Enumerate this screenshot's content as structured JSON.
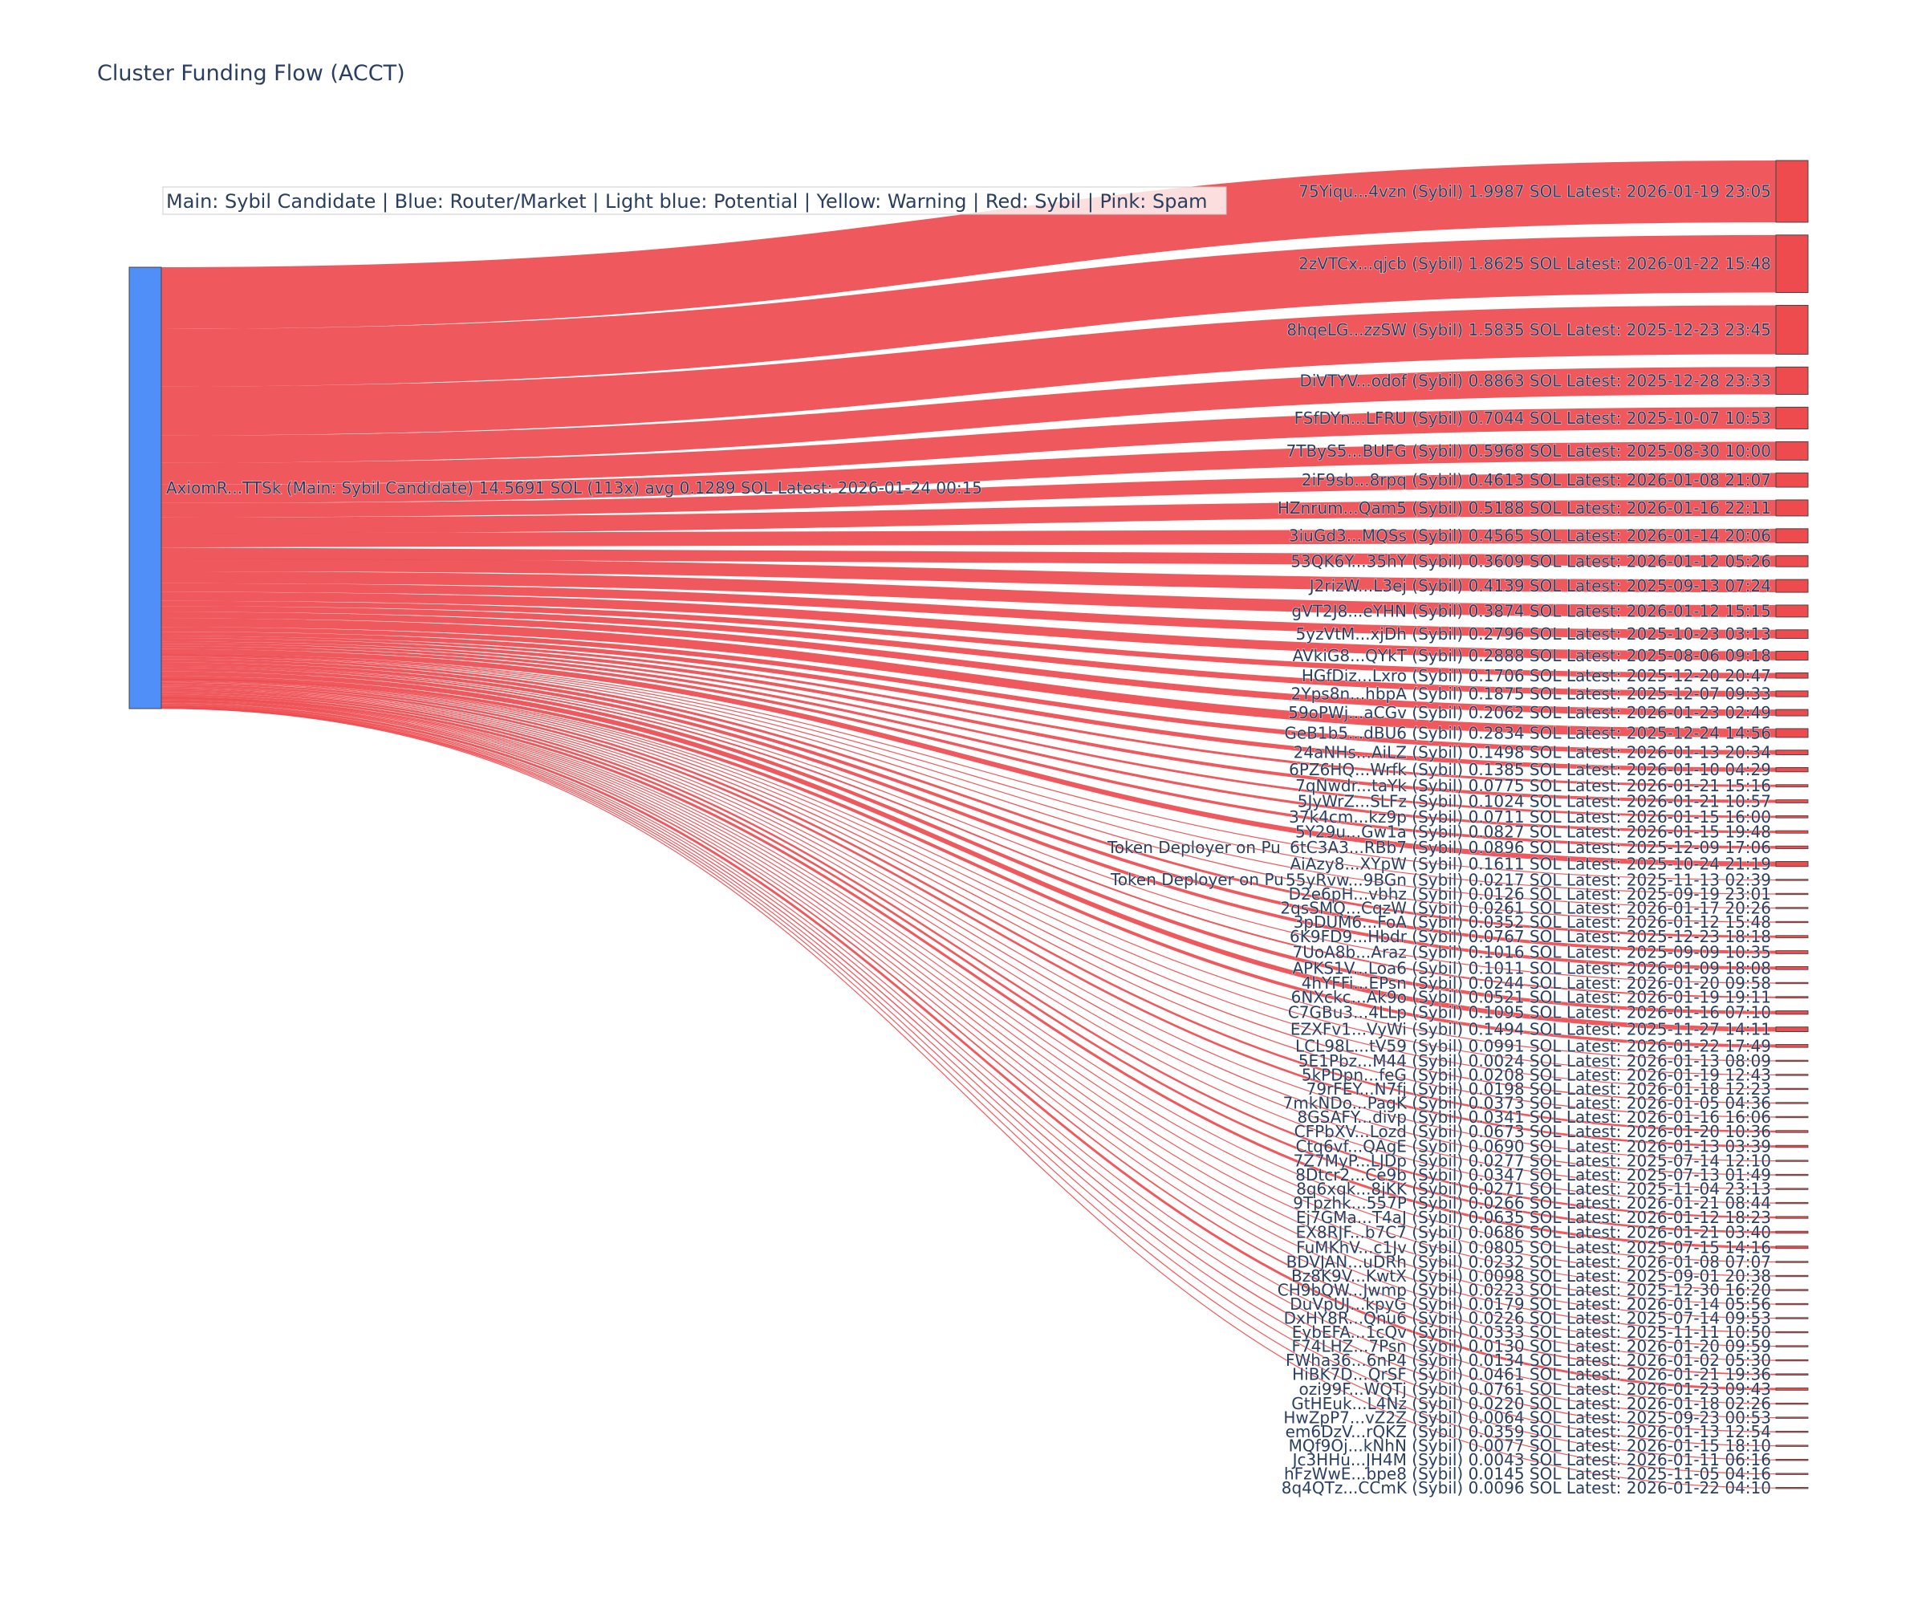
{
  "colors": {
    "source_node": "#4f8ff7",
    "sybil_node": "#ee4b4f",
    "link": "#ee4b4f",
    "text": "#2a3f5f"
  },
  "chart_data": {
    "type": "sankey",
    "title": "Cluster Funding Flow (ACCT)",
    "legend_note": "Main: Sybil Candidate  |  Blue: Router/Market | Light blue: Potential | Yellow: Warning | Red: Sybil | Pink: Spam",
    "source": {
      "label": "AxiomR...TTSk (Main: Sybil Candidate) 14.5691 SOL (113x) avg 0.1289 SOL Latest: 2026-01-24 00:15",
      "total_sol": 14.5691,
      "tx_count": 113,
      "color": "#4f8ff7"
    },
    "floating_labels": [
      "Token Deployer on Pu",
      "Token Deployer on Pu"
    ],
    "targets": [
      {
        "label": "75Yiqu...4vzn (Sybil) 1.9987 SOL Latest: 2026-01-19 23:05",
        "value": 1.9987
      },
      {
        "label": "2zVTCx...qjcb (Sybil) 1.8625 SOL Latest: 2026-01-22 15:48",
        "value": 1.8625
      },
      {
        "label": "8hqeLG...zzSW (Sybil) 1.5835 SOL Latest: 2025-12-23 23:45",
        "value": 1.5835
      },
      {
        "label": "DiVTYV...odof (Sybil) 0.8863 SOL Latest: 2025-12-28 23:33",
        "value": 0.8863
      },
      {
        "label": "FSfDYn...LFRU (Sybil) 0.7044 SOL Latest: 2025-10-07 10:53",
        "value": 0.7044
      },
      {
        "label": "7TByS5...BUFG (Sybil) 0.5968 SOL Latest: 2025-08-30 10:00",
        "value": 0.5968
      },
      {
        "label": "2iF9sb...8rpq (Sybil) 0.4613 SOL Latest: 2026-01-08 21:07",
        "value": 0.4613
      },
      {
        "label": "HZnrum...Qam5 (Sybil) 0.5188 SOL Latest: 2026-01-16 22:11",
        "value": 0.5188
      },
      {
        "label": "3iuGd3...MQSs (Sybil) 0.4565 SOL Latest: 2026-01-14 20:06",
        "value": 0.4565
      },
      {
        "label": "53QK6Y...35hY (Sybil) 0.3609 SOL Latest: 2026-01-12 05:26",
        "value": 0.3609
      },
      {
        "label": "J2rizW...L3ej (Sybil) 0.4139 SOL Latest: 2025-09-13 07:24",
        "value": 0.4139
      },
      {
        "label": "gVT2J8...eYHN (Sybil) 0.3874 SOL Latest: 2026-01-12 15:15",
        "value": 0.3874
      },
      {
        "label": "5yzVtM...xjDh (Sybil) 0.2796 SOL Latest: 2025-10-23 03:13",
        "value": 0.2796
      },
      {
        "label": "AVkiG8...QYkT (Sybil) 0.2888 SOL Latest: 2025-08-06 09:18",
        "value": 0.2888
      },
      {
        "label": "HGfDiz...Lxro (Sybil) 0.1706 SOL Latest: 2025-12-20 20:47",
        "value": 0.1706
      },
      {
        "label": "2Yps8n...hbpA (Sybil) 0.1875 SOL Latest: 2025-12-07 09:33",
        "value": 0.1875
      },
      {
        "label": "59oPWj...aCGv (Sybil) 0.2062 SOL Latest: 2026-01-23 02:49",
        "value": 0.2062
      },
      {
        "label": "GeB1b5...dBU6 (Sybil) 0.2834 SOL Latest: 2025-12-24 14:56",
        "value": 0.2834
      },
      {
        "label": "24aNHs...AiLZ (Sybil) 0.1498 SOL Latest: 2026-01-13 20:34",
        "value": 0.1498
      },
      {
        "label": "6PZ6HQ...Wrfk (Sybil) 0.1385 SOL Latest: 2026-01-10 04:29",
        "value": 0.1385
      },
      {
        "label": "7qNwdr...taYk (Sybil) 0.0775 SOL Latest: 2026-01-21 15:16",
        "value": 0.0775
      },
      {
        "label": "5JyWrZ...SLFz (Sybil) 0.1024 SOL Latest: 2026-01-21 10:57",
        "value": 0.1024
      },
      {
        "label": "37k4cm...kz9p (Sybil) 0.0711 SOL Latest: 2026-01-15 16:00",
        "value": 0.0711
      },
      {
        "label": "5Y29u...Gw1a (Sybil) 0.0827 SOL Latest: 2026-01-15 19:48",
        "value": 0.0827
      },
      {
        "label": "6tC3A3...RBb7 (Sybil) 0.0896 SOL Latest: 2025-12-09 17:06",
        "value": 0.0896
      },
      {
        "label": "AiAzy8...XYpW (Sybil) 0.1611 SOL Latest: 2025-10-24 21:19",
        "value": 0.1611
      },
      {
        "label": "55yRvw...9BGn (Sybil) 0.0217 SOL Latest: 2025-11-13 02:39",
        "value": 0.0217
      },
      {
        "label": "D2e6pH...vbhz (Sybil) 0.0126 SOL Latest: 2025-09-19 23:01",
        "value": 0.0126
      },
      {
        "label": "2qsSMQ...CqzW (Sybil) 0.0261 SOL Latest: 2026-01-17 20:26",
        "value": 0.0261
      },
      {
        "label": "3pDUM6...FoA (Sybil) 0.0352 SOL Latest: 2026-01-12 15:48",
        "value": 0.0352
      },
      {
        "label": "6K9FD9...Hbdr (Sybil) 0.0767 SOL Latest: 2025-12-23 18:18",
        "value": 0.0767
      },
      {
        "label": "7UoA8b...Araz (Sybil) 0.1016 SOL Latest: 2025-09-09 10:35",
        "value": 0.1016
      },
      {
        "label": "APKS1V...Loa6 (Sybil) 0.1011 SOL Latest: 2026-01-09 18:08",
        "value": 0.1011
      },
      {
        "label": "4hYFFi...EPsn (Sybil) 0.0244 SOL Latest: 2026-01-20 09:58",
        "value": 0.0244
      },
      {
        "label": "6NXckc...Ak9o (Sybil) 0.0521 SOL Latest: 2026-01-19 19:11",
        "value": 0.0521
      },
      {
        "label": "C7GBu3...4LLp (Sybil) 0.1095 SOL Latest: 2026-01-16 07:10",
        "value": 0.1095
      },
      {
        "label": "EZXFv1...VyWi (Sybil) 0.1494 SOL Latest: 2025-11-27 14:11",
        "value": 0.1494
      },
      {
        "label": "LCL98L...tV59 (Sybil) 0.0991 SOL Latest: 2026-01-22 17:49",
        "value": 0.0991
      },
      {
        "label": "5E1Pbz...M44 (Sybil) 0.0024 SOL Latest: 2026-01-13 08:09",
        "value": 0.0024
      },
      {
        "label": "5kPDpn...feG (Sybil) 0.0208 SOL Latest: 2026-01-19 12:43",
        "value": 0.0208
      },
      {
        "label": "79rFEY...N7fj (Sybil) 0.0198 SOL Latest: 2026-01-18 12:23",
        "value": 0.0198
      },
      {
        "label": "7mkNDo...PagK (Sybil) 0.0373 SOL Latest: 2026-01-05 04:36",
        "value": 0.0373
      },
      {
        "label": "8GSAFY...divp (Sybil) 0.0341 SOL Latest: 2026-01-16 16:06",
        "value": 0.0341
      },
      {
        "label": "CFPbXV...Lozd (Sybil) 0.0673 SOL Latest: 2026-01-20 10:36",
        "value": 0.0673
      },
      {
        "label": "Ctq6vf...QAgE (Sybil) 0.0690 SOL Latest: 2026-01-13 03:39",
        "value": 0.069
      },
      {
        "label": "7Z7MyP...LJDp (Sybil) 0.0277 SOL Latest: 2025-07-14 12:10",
        "value": 0.0277
      },
      {
        "label": "8Dtcr2...Ce9b (Sybil) 0.0347 SOL Latest: 2025-07-13 01:49",
        "value": 0.0347
      },
      {
        "label": "8q6xqk...8jKK (Sybil) 0.0271 SOL Latest: 2025-11-04 23:13",
        "value": 0.0271
      },
      {
        "label": "9Tpzhk...557P (Sybil) 0.0266 SOL Latest: 2026-01-21 08:44",
        "value": 0.0266
      },
      {
        "label": "Ej7GMa...T4aJ (Sybil) 0.0635 SOL Latest: 2026-01-12 18:23",
        "value": 0.0635
      },
      {
        "label": "EX8RJF...b7C7 (Sybil) 0.0686 SOL Latest: 2026-01-21 03:40",
        "value": 0.0686
      },
      {
        "label": "FuMKhV...c1Jv (Sybil) 0.0805 SOL Latest: 2025-07-15 14:16",
        "value": 0.0805
      },
      {
        "label": "BDVJAN...uDRh (Sybil) 0.0232 SOL Latest: 2026-01-08 07:07",
        "value": 0.0232
      },
      {
        "label": "Bz8K9V...KwtX (Sybil) 0.0098 SOL Latest: 2025-09-01 20:38",
        "value": 0.0098
      },
      {
        "label": "CH9bQW...Jwmp (Sybil) 0.0223 SOL Latest: 2025-12-30 16:20",
        "value": 0.0223
      },
      {
        "label": "DuVpUJ...kpyG (Sybil) 0.0179 SOL Latest: 2026-01-14 05:56",
        "value": 0.0179
      },
      {
        "label": "DxHY8R...Qnu6 (Sybil) 0.0226 SOL Latest: 2025-07-14 09:53",
        "value": 0.0226
      },
      {
        "label": "EybEFA...1cQv (Sybil) 0.0333 SOL Latest: 2025-11-11 10:50",
        "value": 0.0333
      },
      {
        "label": "F74LHZ...7Psn (Sybil) 0.0130 SOL Latest: 2026-01-20 09:59",
        "value": 0.013
      },
      {
        "label": "FWha36...6nP4 (Sybil) 0.0134 SOL Latest: 2026-01-02 05:30",
        "value": 0.0134
      },
      {
        "label": "HiBK7D...QrSF (Sybil) 0.0461 SOL Latest: 2026-01-21 19:36",
        "value": 0.0461
      },
      {
        "label": "ozi99F...WQTj (Sybil) 0.0761 SOL Latest: 2026-01-23 09:43",
        "value": 0.0761
      },
      {
        "label": "GtHEuk...L4Nz (Sybil) 0.0220 SOL Latest: 2026-01-18 02:26",
        "value": 0.022
      },
      {
        "label": "HwZpP7...vZ2Z (Sybil) 0.0064 SOL Latest: 2025-09-23 00:53",
        "value": 0.0064
      },
      {
        "label": "em6DzV...rQKZ (Sybil) 0.0359 SOL Latest: 2026-01-13 12:54",
        "value": 0.0359
      },
      {
        "label": "MQf9Oj...kNhN (Sybil) 0.0077 SOL Latest: 2026-01-15 18:10",
        "value": 0.0077
      },
      {
        "label": "Jc3HHu...JH4M (Sybil) 0.0043 SOL Latest: 2026-01-11 06:16",
        "value": 0.0043
      },
      {
        "label": "hFzWwE...bpe8 (Sybil) 0.0145 SOL Latest: 2025-11-05 04:16",
        "value": 0.0145
      },
      {
        "label": "8q4QTz...CCmK (Sybil) 0.0096 SOL Latest: 2026-01-22 04:10",
        "value": 0.0096
      }
    ]
  }
}
